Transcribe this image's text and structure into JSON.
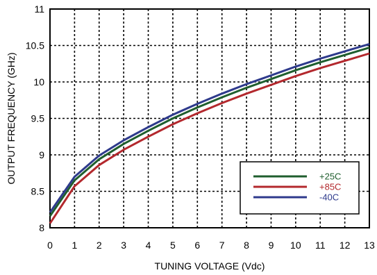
{
  "chart_data": {
    "type": "line",
    "xlabel": "TUNING VOLTAGE (Vdc)",
    "ylabel": "OUTPUT FREQUENCY (GHz)",
    "xlim": [
      0,
      13
    ],
    "ylim": [
      8,
      11
    ],
    "x_ticks": [
      "0",
      "1",
      "2",
      "3",
      "4",
      "5",
      "6",
      "7",
      "8",
      "9",
      "10",
      "11",
      "12",
      "13"
    ],
    "y_ticks": [
      "8",
      "8.5",
      "9",
      "9.5",
      "10",
      "10.5",
      "11"
    ],
    "grid": "dashed",
    "legend_position": "bottom-right",
    "x": [
      0,
      1,
      2,
      3,
      4,
      5,
      6,
      7,
      8,
      9,
      10,
      11,
      12,
      13
    ],
    "series": [
      {
        "name": "+25C",
        "color": "#1f5e2e",
        "values": [
          8.16,
          8.65,
          8.94,
          9.15,
          9.33,
          9.5,
          9.65,
          9.79,
          9.92,
          10.04,
          10.16,
          10.27,
          10.37,
          10.47
        ]
      },
      {
        "name": "+85C",
        "color": "#b3282d",
        "values": [
          8.06,
          8.57,
          8.86,
          9.07,
          9.25,
          9.42,
          9.57,
          9.71,
          9.84,
          9.96,
          10.08,
          10.19,
          10.29,
          10.39
        ]
      },
      {
        "name": "-40C",
        "color": "#2e3a8c",
        "values": [
          8.21,
          8.7,
          8.99,
          9.2,
          9.38,
          9.55,
          9.7,
          9.84,
          9.97,
          10.09,
          10.21,
          10.32,
          10.42,
          10.52
        ]
      }
    ]
  }
}
